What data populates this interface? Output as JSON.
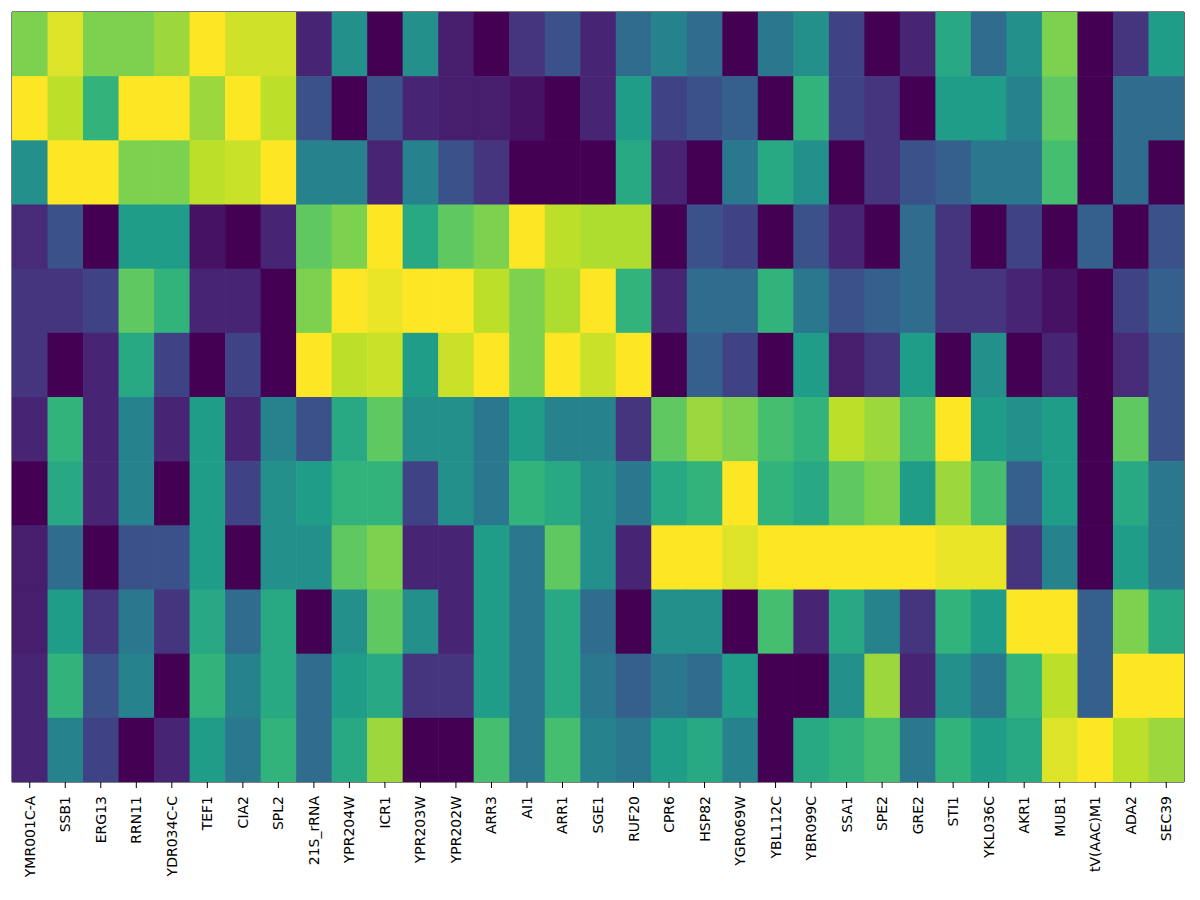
{
  "chart_data": {
    "type": "heatmap",
    "color": "viridis",
    "tick_labels": "x",
    "color_range": [
      0,
      1
    ],
    "categories": [
      "YMR001C-A",
      "SSB1",
      "ERG13",
      "RRN11",
      "YDR034C-C",
      "TEF1",
      "CIA2",
      "SPL2",
      "21S_rRNA",
      "YPR204W",
      "ICR1",
      "YPR203W",
      "YPR202W",
      "ARR3",
      "AI1",
      "ARR1",
      "SGE1",
      "RUF20",
      "CPR6",
      "HSP82",
      "YGR069W",
      "YBL112C",
      "YBR099C",
      "SSA1",
      "SPE2",
      "GRE2",
      "STI1",
      "YKL036C",
      "AKR1",
      "MUB1",
      "tV(AAC)M1",
      "ADA2",
      "SEC39"
    ],
    "cells": [
      [
        0.8,
        0.95,
        0.8,
        0.8,
        0.85,
        1.0,
        0.93,
        0.93,
        0.1,
        0.5,
        0.0,
        0.5,
        0.08,
        0.0,
        0.15,
        0.25,
        0.1,
        0.35,
        0.45,
        0.35,
        0.0,
        0.4,
        0.5,
        0.2,
        0.0,
        0.1,
        0.6,
        0.35,
        0.5,
        0.8,
        0.0,
        0.15,
        0.55
      ],
      [
        1.0,
        0.9,
        0.65,
        1.0,
        1.0,
        0.85,
        1.0,
        0.9,
        0.25,
        0.0,
        0.25,
        0.1,
        0.08,
        0.08,
        0.05,
        0.0,
        0.1,
        0.55,
        0.2,
        0.25,
        0.3,
        0.0,
        0.65,
        0.2,
        0.15,
        0.0,
        0.55,
        0.55,
        0.45,
        0.75,
        0.0,
        0.35,
        0.35
      ],
      [
        0.5,
        1.0,
        1.0,
        0.8,
        0.8,
        0.9,
        0.92,
        1.0,
        0.45,
        0.45,
        0.1,
        0.45,
        0.25,
        0.15,
        0.0,
        0.0,
        0.0,
        0.6,
        0.1,
        0.0,
        0.4,
        0.6,
        0.5,
        0.0,
        0.15,
        0.25,
        0.3,
        0.4,
        0.4,
        0.7,
        0.0,
        0.35,
        0.0
      ],
      [
        0.12,
        0.25,
        0.0,
        0.55,
        0.55,
        0.05,
        0.0,
        0.1,
        0.75,
        0.8,
        1.0,
        0.6,
        0.75,
        0.8,
        1.0,
        0.9,
        0.88,
        0.88,
        0.0,
        0.25,
        0.2,
        0.0,
        0.25,
        0.1,
        0.0,
        0.35,
        0.15,
        0.0,
        0.2,
        0.0,
        0.3,
        0.0,
        0.25
      ],
      [
        0.15,
        0.15,
        0.2,
        0.75,
        0.65,
        0.1,
        0.1,
        0.0,
        0.8,
        1.0,
        0.97,
        1.0,
        1.0,
        0.9,
        0.8,
        0.88,
        1.0,
        0.65,
        0.1,
        0.35,
        0.35,
        0.65,
        0.4,
        0.25,
        0.3,
        0.35,
        0.15,
        0.15,
        0.1,
        0.05,
        0.0,
        0.2,
        0.3
      ],
      [
        0.15,
        0.0,
        0.1,
        0.6,
        0.2,
        0.0,
        0.2,
        0.0,
        1.0,
        0.9,
        0.92,
        0.55,
        0.92,
        1.0,
        0.8,
        1.0,
        0.92,
        1.0,
        0.0,
        0.3,
        0.2,
        0.0,
        0.55,
        0.08,
        0.15,
        0.55,
        0.0,
        0.5,
        0.0,
        0.1,
        0.0,
        0.12,
        0.25
      ],
      [
        0.1,
        0.65,
        0.1,
        0.45,
        0.1,
        0.55,
        0.1,
        0.45,
        0.25,
        0.6,
        0.75,
        0.5,
        0.5,
        0.4,
        0.55,
        0.45,
        0.45,
        0.15,
        0.75,
        0.85,
        0.8,
        0.7,
        0.65,
        0.9,
        0.85,
        0.7,
        1.0,
        0.55,
        0.5,
        0.55,
        0.0,
        0.75,
        0.25
      ],
      [
        0.0,
        0.6,
        0.1,
        0.45,
        0.0,
        0.55,
        0.2,
        0.5,
        0.55,
        0.65,
        0.65,
        0.2,
        0.5,
        0.4,
        0.65,
        0.6,
        0.5,
        0.4,
        0.6,
        0.65,
        1.0,
        0.65,
        0.6,
        0.75,
        0.8,
        0.55,
        0.85,
        0.7,
        0.3,
        0.55,
        0.0,
        0.6,
        0.4
      ],
      [
        0.08,
        0.35,
        0.0,
        0.25,
        0.25,
        0.55,
        0.0,
        0.5,
        0.5,
        0.75,
        0.8,
        0.1,
        0.1,
        0.55,
        0.4,
        0.75,
        0.5,
        0.1,
        1.0,
        1.0,
        0.95,
        1.0,
        1.0,
        1.0,
        1.0,
        1.0,
        0.97,
        0.97,
        0.15,
        0.45,
        0.0,
        0.55,
        0.4
      ],
      [
        0.08,
        0.55,
        0.15,
        0.4,
        0.15,
        0.6,
        0.35,
        0.6,
        0.0,
        0.5,
        0.75,
        0.5,
        0.1,
        0.55,
        0.4,
        0.6,
        0.35,
        0.0,
        0.5,
        0.5,
        0.0,
        0.7,
        0.1,
        0.6,
        0.45,
        0.15,
        0.65,
        0.55,
        1.0,
        1.0,
        0.3,
        0.8,
        0.6
      ],
      [
        0.1,
        0.65,
        0.25,
        0.45,
        0.0,
        0.65,
        0.45,
        0.6,
        0.35,
        0.55,
        0.6,
        0.15,
        0.15,
        0.55,
        0.4,
        0.6,
        0.4,
        0.3,
        0.4,
        0.35,
        0.55,
        0.0,
        0.0,
        0.5,
        0.85,
        0.1,
        0.5,
        0.4,
        0.65,
        0.9,
        0.3,
        1.0,
        1.0
      ],
      [
        0.1,
        0.45,
        0.2,
        0.0,
        0.1,
        0.55,
        0.4,
        0.65,
        0.35,
        0.6,
        0.85,
        0.0,
        0.0,
        0.7,
        0.4,
        0.7,
        0.45,
        0.4,
        0.55,
        0.6,
        0.45,
        0.0,
        0.6,
        0.65,
        0.7,
        0.4,
        0.65,
        0.55,
        0.6,
        0.95,
        1.0,
        0.9,
        0.85
      ]
    ]
  }
}
